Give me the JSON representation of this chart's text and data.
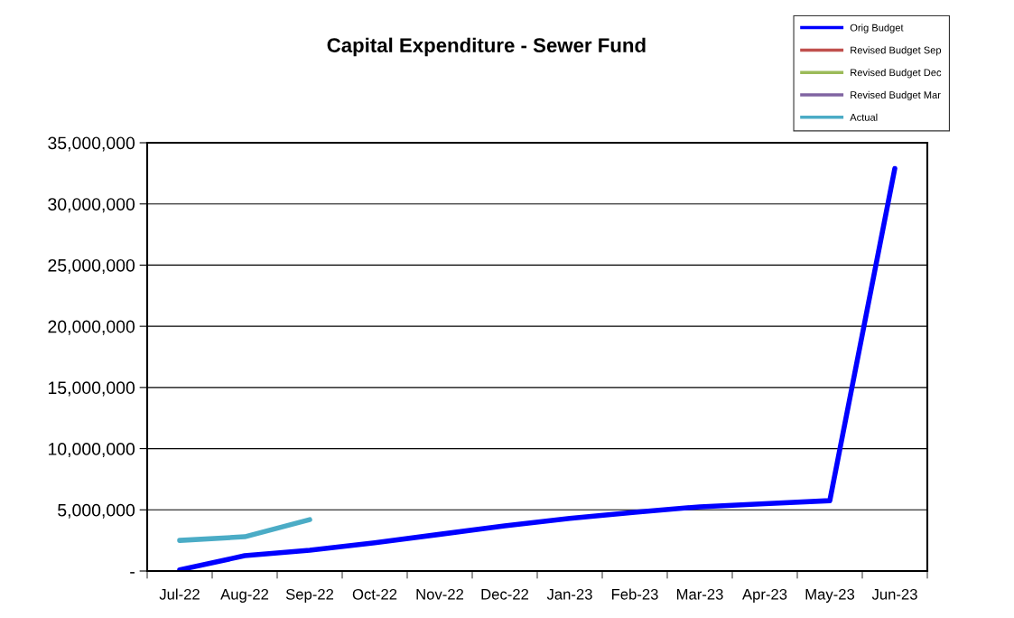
{
  "chart_data": {
    "type": "line",
    "title": "Capital Expenditure - Sewer Fund",
    "categories": [
      "Jul-22",
      "Aug-22",
      "Sep-22",
      "Oct-22",
      "Nov-22",
      "Dec-22",
      "Jan-23",
      "Feb-23",
      "Mar-23",
      "Apr-23",
      "May-23",
      "Jun-23"
    ],
    "series": [
      {
        "name": "Orig Budget",
        "color": "#0000ff",
        "values": [
          100000,
          1250000,
          1700000,
          2300000,
          3000000,
          3700000,
          4300000,
          4800000,
          5250000,
          5500000,
          5750000,
          32900000
        ]
      },
      {
        "name": "Revised Budget Sep",
        "color": "#c0504d",
        "values": [
          null,
          null,
          null,
          null,
          null,
          null,
          null,
          null,
          null,
          null,
          null,
          null
        ]
      },
      {
        "name": "Revised Budget Dec",
        "color": "#9bbb59",
        "values": [
          null,
          null,
          null,
          null,
          null,
          null,
          null,
          null,
          null,
          null,
          null,
          null
        ]
      },
      {
        "name": "Revised Budget Mar",
        "color": "#8064a2",
        "values": [
          null,
          null,
          null,
          null,
          null,
          null,
          null,
          null,
          null,
          null,
          null,
          null
        ]
      },
      {
        "name": "Actual",
        "color": "#4bacc6",
        "values": [
          2500000,
          2800000,
          4200000,
          null,
          null,
          null,
          null,
          null,
          null,
          null,
          null,
          null
        ]
      }
    ],
    "ylim": [
      0,
      35000000
    ],
    "yticks": [
      {
        "value": 0,
        "label": "-"
      },
      {
        "value": 5000000,
        "label": "5,000,000"
      },
      {
        "value": 10000000,
        "label": "10,000,000"
      },
      {
        "value": 15000000,
        "label": "15,000,000"
      },
      {
        "value": 20000000,
        "label": "20,000,000"
      },
      {
        "value": 25000000,
        "label": "25,000,000"
      },
      {
        "value": 30000000,
        "label": "30,000,000"
      },
      {
        "value": 35000000,
        "label": "35,000,000"
      }
    ],
    "grid": "y",
    "legend": "top right",
    "marker": "none",
    "line_style": "solid"
  }
}
